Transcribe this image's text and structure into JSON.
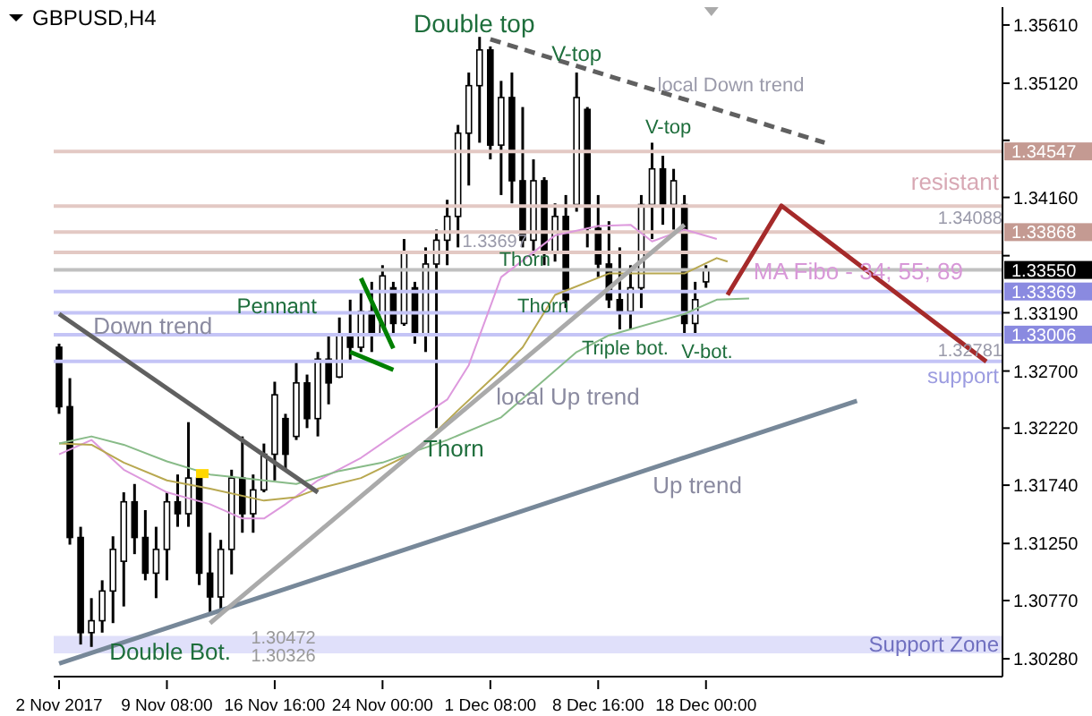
{
  "chart_data": {
    "type": "candlestick",
    "title": "GBPUSD,H4",
    "categories": [
      "2 Nov 2017",
      null,
      null,
      null,
      null,
      null,
      null,
      null,
      null,
      null,
      "9 Nov 08:00",
      null,
      null,
      null,
      null,
      null,
      null,
      null,
      null,
      null,
      "16 Nov 16:00",
      null,
      null,
      null,
      null,
      null,
      null,
      null,
      null,
      null,
      "24 Nov 00:00",
      null,
      null,
      null,
      null,
      null,
      null,
      null,
      null,
      null,
      "1 Dec 08:00",
      null,
      null,
      null,
      null,
      null,
      null,
      null,
      null,
      null,
      "8 Dec 16:00",
      null,
      null,
      null,
      null,
      null,
      null,
      null,
      null,
      null,
      "18 Dec 00:00",
      null,
      null,
      null,
      null,
      null,
      null,
      null,
      null,
      null,
      null,
      null,
      null,
      null,
      null,
      null,
      null,
      null,
      null,
      null,
      null,
      null,
      null,
      null,
      null,
      null,
      null,
      null
    ],
    "color": "#000000",
    "ohlc": [
      [
        1.329,
        1.3293,
        1.3234,
        1.324
      ],
      [
        1.324,
        1.3264,
        1.3124,
        1.313
      ],
      [
        1.313,
        1.3139,
        1.304,
        1.305
      ],
      [
        1.305,
        1.3079,
        1.3038,
        1.306
      ],
      [
        1.306,
        1.3094,
        1.305,
        1.3085
      ],
      [
        1.3085,
        1.3131,
        1.3058,
        1.312
      ],
      [
        1.311,
        1.3168,
        1.3072,
        1.316
      ],
      [
        1.316,
        1.3175,
        1.3116,
        1.313
      ],
      [
        1.313,
        1.3153,
        1.3094,
        1.31
      ],
      [
        1.31,
        1.3139,
        1.3079,
        1.312
      ],
      [
        1.312,
        1.3168,
        1.3094,
        1.316
      ],
      [
        1.316,
        1.3183,
        1.3139,
        1.315
      ],
      [
        1.315,
        1.3227,
        1.3139,
        1.318
      ],
      [
        1.318,
        1.3183,
        1.309,
        1.31
      ],
      [
        1.31,
        1.3134,
        1.3065,
        1.308
      ],
      [
        1.308,
        1.3128,
        1.3069,
        1.312
      ],
      [
        1.312,
        1.3187,
        1.3099,
        1.318
      ],
      [
        1.318,
        1.3215,
        1.3134,
        1.315
      ],
      [
        1.315,
        1.3183,
        1.3134,
        1.317
      ],
      [
        1.317,
        1.3209,
        1.3168,
        1.32
      ],
      [
        1.32,
        1.3261,
        1.3178,
        1.325
      ],
      [
        1.323,
        1.3234,
        1.3186,
        1.32
      ],
      [
        1.3215,
        1.3278,
        1.3212,
        1.326
      ],
      [
        1.326,
        1.3267,
        1.3222,
        1.323
      ],
      [
        1.323,
        1.3286,
        1.3215,
        1.328
      ],
      [
        1.328,
        1.33,
        1.3242,
        1.326
      ],
      [
        1.3265,
        1.3315,
        1.3264,
        1.33
      ],
      [
        1.33,
        1.333,
        1.3278,
        1.329
      ],
      [
        1.329,
        1.3337,
        1.3286,
        1.332
      ],
      [
        1.332,
        1.3345,
        1.3286,
        1.33
      ],
      [
        1.33,
        1.3359,
        1.33,
        1.335
      ],
      [
        1.334,
        1.3345,
        1.33,
        1.331
      ],
      [
        1.331,
        1.3381,
        1.3308,
        1.337
      ],
      [
        1.334,
        1.3345,
        1.3293,
        1.33
      ],
      [
        1.33,
        1.3374,
        1.3286,
        1.336
      ],
      [
        1.336,
        1.3389,
        1.3222,
        1.338
      ],
      [
        1.338,
        1.3414,
        1.3359,
        1.34
      ],
      [
        1.34,
        1.3477,
        1.3374,
        1.347
      ],
      [
        1.347,
        1.3521,
        1.3426,
        1.351
      ],
      [
        1.351,
        1.3551,
        1.3462,
        1.354
      ],
      [
        1.354,
        1.3543,
        1.3448,
        1.346
      ],
      [
        1.346,
        1.3514,
        1.3418,
        1.35
      ],
      [
        1.35,
        1.3521,
        1.3411,
        1.343
      ],
      [
        1.343,
        1.3492,
        1.3374,
        1.338
      ],
      [
        1.338,
        1.3448,
        1.3367,
        1.343
      ],
      [
        1.343,
        1.3433,
        1.3359,
        1.337
      ],
      [
        1.337,
        1.3411,
        1.3362,
        1.34
      ],
      [
        1.34,
        1.3418,
        1.3323,
        1.333
      ],
      [
        1.341,
        1.3521,
        1.3404,
        1.35
      ],
      [
        1.349,
        1.3492,
        1.3374,
        1.339
      ],
      [
        1.339,
        1.3418,
        1.3349,
        1.336
      ],
      [
        1.336,
        1.3396,
        1.3323,
        1.333
      ],
      [
        1.333,
        1.3374,
        1.3305,
        1.332
      ],
      [
        1.332,
        1.3359,
        1.3305,
        1.334
      ],
      [
        1.334,
        1.3418,
        1.3323,
        1.341
      ],
      [
        1.341,
        1.3462,
        1.3381,
        1.344
      ],
      [
        1.344,
        1.3451,
        1.3393,
        1.341
      ],
      [
        1.341,
        1.344,
        1.3389,
        1.343
      ],
      [
        1.341,
        1.3418,
        1.33,
        1.331
      ],
      [
        1.331,
        1.3345,
        1.33,
        1.333
      ],
      [
        1.3345,
        1.3359,
        1.334,
        1.3355
      ],
      null,
      null,
      null,
      null,
      null,
      null,
      null,
      null,
      null,
      null,
      null,
      null,
      null,
      null,
      null,
      null,
      null,
      null,
      null,
      null,
      null,
      null,
      null,
      null,
      null,
      null,
      null
    ],
    "series": [
      {
        "type": "line",
        "color": "#dd99dd",
        "values": [
          1.32,
          null,
          null,
          1.3212,
          null,
          null,
          1.3187,
          null,
          null,
          null,
          1.3168,
          null,
          null,
          null,
          1.3158,
          null,
          null,
          1.3146,
          null,
          1.3146,
          null,
          1.3158,
          null,
          null,
          1.3178,
          null,
          null,
          null,
          1.3197,
          null,
          null,
          null,
          1.3222,
          null,
          null,
          null,
          1.3246,
          null,
          1.3275,
          null,
          null,
          1.3349,
          null,
          null,
          null,
          null,
          1.3384,
          null,
          null,
          null,
          1.3392,
          null,
          null,
          1.3393,
          null,
          1.3379,
          null,
          null,
          1.3389,
          null,
          null,
          1.3381,
          null,
          null,
          null,
          null,
          null,
          null,
          null,
          null,
          null,
          null,
          null,
          null,
          null,
          null,
          null,
          null,
          null,
          null,
          null,
          null,
          null,
          null,
          null,
          null,
          null,
          null
        ]
      },
      {
        "type": "line",
        "color": "#b8a850",
        "values": [
          1.3209,
          null,
          null,
          1.3208,
          null,
          null,
          1.3193,
          null,
          null,
          null,
          1.3178,
          null,
          null,
          null,
          1.3171,
          null,
          null,
          null,
          null,
          1.3161,
          null,
          null,
          1.3164,
          null,
          1.3171,
          null,
          null,
          null,
          1.318,
          null,
          null,
          null,
          null,
          1.3202,
          null,
          null,
          null,
          1.3237,
          null,
          null,
          null,
          1.3271,
          null,
          1.329,
          null,
          null,
          1.3334,
          null,
          null,
          null,
          null,
          1.3352,
          null,
          null,
          null,
          null,
          null,
          null,
          1.3352,
          null,
          null,
          1.3365,
          1.3362,
          null,
          null,
          null,
          null,
          null,
          null,
          null,
          null,
          null,
          null,
          null,
          null,
          null,
          null,
          null,
          null,
          null,
          null,
          null,
          null,
          null,
          null,
          null,
          null,
          null
        ]
      },
      {
        "type": "line",
        "color": "#88bb88",
        "values": [
          1.3209,
          null,
          null,
          1.3215,
          null,
          null,
          1.3208,
          null,
          null,
          null,
          1.3194,
          null,
          null,
          null,
          1.3183,
          null,
          null,
          null,
          null,
          1.3178,
          null,
          null,
          1.3175,
          null,
          null,
          null,
          1.3186,
          null,
          null,
          null,
          1.3193,
          null,
          null,
          null,
          null,
          null,
          1.3212,
          null,
          null,
          null,
          null,
          1.3231,
          null,
          null,
          null,
          null,
          null,
          null,
          1.3286,
          null,
          null,
          1.33,
          null,
          null,
          null,
          null,
          null,
          null,
          1.3318,
          null,
          null,
          1.333,
          null,
          null,
          1.3331,
          null,
          null,
          null,
          null,
          null,
          null,
          null,
          null,
          null,
          null,
          null,
          null,
          null,
          null,
          null,
          null,
          null,
          null,
          null,
          null,
          null,
          null,
          null
        ]
      },
      {
        "type": "line",
        "color": "#606060",
        "values": [
          1.3318,
          null,
          null,
          null,
          null,
          null,
          null,
          null,
          null,
          null,
          null,
          null,
          null,
          null,
          null,
          null,
          null,
          null,
          null,
          null,
          null,
          null,
          null,
          null,
          1.3168,
          null,
          null,
          null,
          null,
          null,
          null,
          null,
          null,
          null,
          null,
          null,
          null,
          null,
          null,
          null,
          null,
          null,
          null,
          null,
          null,
          null,
          null,
          null,
          null,
          null,
          null,
          null,
          null,
          null,
          null,
          null,
          null,
          null,
          null,
          null,
          null,
          null,
          null,
          null,
          null,
          null,
          null,
          null,
          null,
          null,
          null,
          null,
          null,
          null,
          null,
          null,
          null,
          null,
          null,
          null,
          null,
          null,
          null,
          null,
          null,
          null,
          null,
          null
        ]
      },
      {
        "type": "line",
        "color": "#778899",
        "values": [
          1.3024,
          null,
          null,
          null,
          null,
          null,
          null,
          null,
          null,
          null,
          null,
          null,
          null,
          null,
          null,
          null,
          null,
          null,
          null,
          null,
          null,
          null,
          null,
          null,
          null,
          null,
          null,
          null,
          null,
          null,
          null,
          null,
          null,
          null,
          null,
          null,
          null,
          null,
          null,
          null,
          null,
          null,
          null,
          null,
          null,
          null,
          null,
          null,
          null,
          null,
          null,
          null,
          null,
          null,
          null,
          null,
          null,
          null,
          null,
          null,
          null,
          null,
          null,
          null,
          null,
          null,
          null,
          null,
          null,
          null,
          null,
          null,
          null,
          null,
          1.3245,
          null,
          null,
          null,
          null,
          null,
          null,
          null,
          null,
          null,
          null,
          null,
          null,
          null
        ]
      },
      {
        "type": "line",
        "color": "#aaaaaa",
        "values": [
          null,
          null,
          null,
          null,
          null,
          null,
          null,
          null,
          null,
          null,
          null,
          null,
          null,
          null,
          1.3058,
          null,
          null,
          null,
          null,
          null,
          null,
          null,
          null,
          null,
          null,
          null,
          null,
          null,
          null,
          null,
          null,
          null,
          null,
          null,
          null,
          null,
          null,
          null,
          null,
          null,
          null,
          null,
          null,
          null,
          null,
          null,
          null,
          null,
          null,
          null,
          null,
          null,
          null,
          null,
          null,
          null,
          null,
          null,
          1.3393,
          null,
          null,
          null,
          null,
          null,
          null,
          null,
          null,
          null,
          null,
          null,
          null,
          null,
          null,
          null,
          null,
          null,
          null,
          null,
          null,
          null,
          null,
          null,
          null,
          null,
          null,
          null,
          null,
          null
        ]
      },
      {
        "type": "line",
        "color": "#606060",
        "line_style": "dashed",
        "values": [
          null,
          null,
          null,
          null,
          null,
          null,
          null,
          null,
          null,
          null,
          null,
          null,
          null,
          null,
          null,
          null,
          null,
          null,
          null,
          null,
          null,
          null,
          null,
          null,
          null,
          null,
          null,
          null,
          null,
          null,
          null,
          null,
          null,
          null,
          null,
          null,
          null,
          null,
          null,
          null,
          1.3549,
          null,
          null,
          null,
          null,
          null,
          null,
          null,
          null,
          null,
          null,
          null,
          null,
          null,
          null,
          null,
          null,
          null,
          null,
          null,
          null,
          null,
          null,
          null,
          null,
          null,
          null,
          null,
          null,
          null,
          null,
          1.3462,
          null,
          null,
          null,
          null,
          null,
          null,
          null,
          null,
          null,
          null,
          null,
          null,
          null,
          null,
          null,
          null
        ]
      },
      {
        "type": "line",
        "color": "#008000",
        "values": [
          null,
          null,
          null,
          null,
          null,
          null,
          null,
          null,
          null,
          null,
          null,
          null,
          null,
          null,
          null,
          null,
          null,
          null,
          null,
          null,
          null,
          null,
          null,
          null,
          null,
          null,
          null,
          null,
          1.3348,
          null,
          null,
          1.3289,
          null,
          null,
          null,
          null,
          null,
          null,
          null,
          null,
          null,
          null,
          null,
          null,
          null,
          null,
          null,
          null,
          null,
          null,
          null,
          null,
          null,
          null,
          null,
          null,
          null,
          null,
          null,
          null,
          null,
          null,
          null,
          null,
          null,
          null,
          null,
          null,
          null,
          null,
          null,
          null,
          null,
          null,
          null,
          null,
          null,
          null,
          null,
          null,
          null,
          null,
          null,
          null,
          null,
          null,
          null,
          null
        ]
      },
      {
        "type": "line",
        "color": "#008000",
        "values": [
          null,
          null,
          null,
          null,
          null,
          null,
          null,
          null,
          null,
          null,
          null,
          null,
          null,
          null,
          null,
          null,
          null,
          null,
          null,
          null,
          null,
          null,
          null,
          null,
          null,
          null,
          null,
          1.3286,
          null,
          null,
          null,
          1.3271,
          null,
          null,
          null,
          null,
          null,
          null,
          null,
          null,
          null,
          null,
          null,
          null,
          null,
          null,
          null,
          null,
          null,
          null,
          null,
          null,
          null,
          null,
          null,
          null,
          null,
          null,
          null,
          null,
          null,
          null,
          null,
          null,
          null,
          null,
          null,
          null,
          null,
          null,
          null,
          null,
          null,
          null,
          null,
          null,
          null,
          null,
          null,
          null,
          null,
          null,
          null,
          null,
          null,
          null,
          null,
          null
        ]
      },
      {
        "type": "line",
        "color": "#a52a2a",
        "values": [
          null,
          null,
          null,
          null,
          null,
          null,
          null,
          null,
          null,
          null,
          null,
          null,
          null,
          null,
          null,
          null,
          null,
          null,
          null,
          null,
          null,
          null,
          null,
          null,
          null,
          null,
          null,
          null,
          null,
          null,
          null,
          null,
          null,
          null,
          null,
          null,
          null,
          null,
          null,
          null,
          null,
          null,
          null,
          null,
          null,
          null,
          null,
          null,
          null,
          null,
          null,
          null,
          null,
          null,
          null,
          null,
          null,
          null,
          null,
          null,
          null,
          null,
          1.3334,
          null,
          null,
          null,
          null,
          1.3409,
          null,
          null,
          null,
          null,
          null,
          null,
          null,
          null,
          null,
          null,
          null,
          null,
          null,
          null,
          null,
          null,
          null,
          null,
          1.3278,
          null
        ]
      }
    ],
    "ylim": [
      1.3013,
      1.3576
    ],
    "yticks": [
      {
        "value": 1.3561,
        "label": "1.35610"
      },
      {
        "value": 1.3512,
        "label": "1.35120"
      },
      {
        "value": 1.3464,
        "label": null
      },
      {
        "value": 1.3416,
        "label": "1.34160"
      },
      {
        "value": 1.3367,
        "label": null
      },
      {
        "value": 1.3319,
        "label": "1.33190"
      },
      {
        "value": 1.327,
        "label": "1.32700"
      },
      {
        "value": 1.3222,
        "label": "1.32220"
      },
      {
        "value": 1.3174,
        "label": "1.31740"
      },
      {
        "value": 1.3125,
        "label": "1.31250"
      },
      {
        "value": 1.3077,
        "label": "1.30770"
      },
      {
        "value": 1.3028,
        "label": "1.30280"
      }
    ],
    "ref_lines": [
      {
        "axis": "y",
        "value": 1.34547,
        "label": "1.34547",
        "color": "#e3c9c4"
      },
      {
        "axis": "y",
        "value": 1.34088,
        "label": "1.34088",
        "color": "#e3c9c4"
      },
      {
        "axis": "y",
        "value": 1.33868,
        "label": "1.33868",
        "color": "#e3c9c4"
      },
      {
        "axis": "y",
        "value": 1.33697,
        "label": "1.33697",
        "color": "#e3c9c4"
      },
      {
        "axis": "y",
        "value": 1.3355,
        "label": "1.33550",
        "color": "#c0c0c0"
      },
      {
        "axis": "y",
        "value": 1.33369,
        "label": "1.33369",
        "color": "#c4c4f6"
      },
      {
        "axis": "y",
        "value": 1.3319,
        "label": null,
        "color": "#c4c4f6"
      },
      {
        "axis": "y",
        "value": 1.33006,
        "label": "1.33006",
        "color": "#c4c4f6"
      },
      {
        "axis": "y",
        "value": 1.32781,
        "label": "1.32781",
        "color": "#c4c4f6"
      }
    ],
    "bands": [
      {
        "axis": "y",
        "from": 1.30326,
        "to": 1.30472,
        "label": "Support Zone",
        "color": "#e0e0fa"
      }
    ],
    "annotations": [
      "Double top",
      "V-top",
      "local Down trend",
      "V-top",
      "resistant",
      "MA Fibo - 34; 55; 89",
      "Thorn",
      "Thorn",
      "Pennant",
      "Down trend",
      "Triple bot.",
      "V-bot.",
      "local Up trend",
      "Thorn",
      "support",
      "Up trend",
      "Double Bot.",
      "1.30472",
      "1.30326"
    ]
  }
}
